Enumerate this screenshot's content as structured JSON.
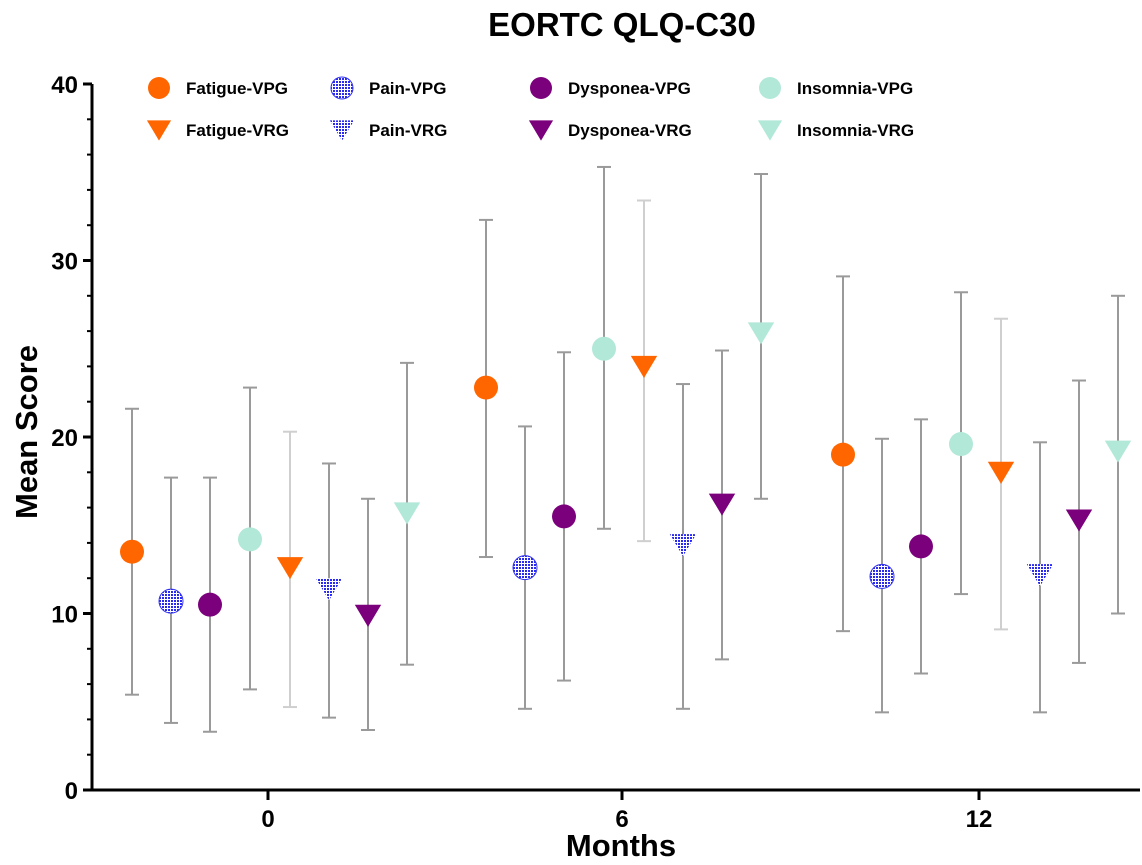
{
  "chart_data": {
    "type": "scatter",
    "title": "EORTC QLQ-C30",
    "xlabel": "Months",
    "ylabel": "Mean Score",
    "categories": [
      "0",
      "6",
      "12"
    ],
    "ylim": [
      0,
      40
    ],
    "yticks": [
      "0",
      "10",
      "20",
      "30",
      "40"
    ],
    "grid": false,
    "legend_position": "top",
    "series": [
      {
        "name": "Fatigue-VPG",
        "color": "#FF6600",
        "marker": "circle",
        "fill": "solid",
        "values": [
          13.5,
          22.8,
          19.0
        ],
        "lower": [
          5.4,
          13.2,
          9.0
        ],
        "upper": [
          21.6,
          32.3,
          29.1
        ]
      },
      {
        "name": "Pain-VPG",
        "color": "#3333EE",
        "marker": "circle",
        "fill": "hatch",
        "values": [
          10.7,
          12.6,
          12.1
        ],
        "lower": [
          3.8,
          4.6,
          4.4
        ],
        "upper": [
          17.7,
          20.6,
          19.9
        ]
      },
      {
        "name": "Dysponea-VPG",
        "color": "#7B007B",
        "marker": "circle",
        "fill": "solid",
        "values": [
          10.5,
          15.5,
          13.8
        ],
        "lower": [
          3.3,
          6.2,
          6.6
        ],
        "upper": [
          17.7,
          24.8,
          21.0
        ]
      },
      {
        "name": "Insomnia-VPG",
        "color": "#B2E8D7",
        "marker": "circle",
        "fill": "solid",
        "values": [
          14.2,
          25.0,
          19.6
        ],
        "lower": [
          5.7,
          14.8,
          11.1
        ],
        "upper": [
          22.8,
          35.3,
          28.2
        ]
      },
      {
        "name": "Fatigue-VRG",
        "color": "#FF6600",
        "marker": "triangle",
        "fill": "solid",
        "values": [
          12.6,
          24.0,
          18.0
        ],
        "lower": [
          4.7,
          14.1,
          9.1
        ],
        "upper": [
          20.3,
          33.4,
          26.7
        ]
      },
      {
        "name": "Pain-VRG",
        "color": "#3333EE",
        "marker": "triangle",
        "fill": "hatch",
        "values": [
          11.4,
          13.9,
          12.2
        ],
        "lower": [
          4.1,
          4.6,
          4.4
        ],
        "upper": [
          18.5,
          23.0,
          19.7
        ]
      },
      {
        "name": "Dysponea-VRG",
        "color": "#7B007B",
        "marker": "triangle",
        "fill": "solid",
        "values": [
          9.9,
          16.2,
          15.3
        ],
        "lower": [
          3.4,
          7.4,
          7.2
        ],
        "upper": [
          16.5,
          24.9,
          23.2
        ]
      },
      {
        "name": "Insomnia-VRG",
        "color": "#B2E8D7",
        "marker": "triangle",
        "fill": "solid",
        "values": [
          15.7,
          25.9,
          19.2
        ],
        "lower": [
          7.1,
          16.5,
          10.0
        ],
        "upper": [
          24.2,
          34.9,
          28.0
        ]
      }
    ]
  }
}
